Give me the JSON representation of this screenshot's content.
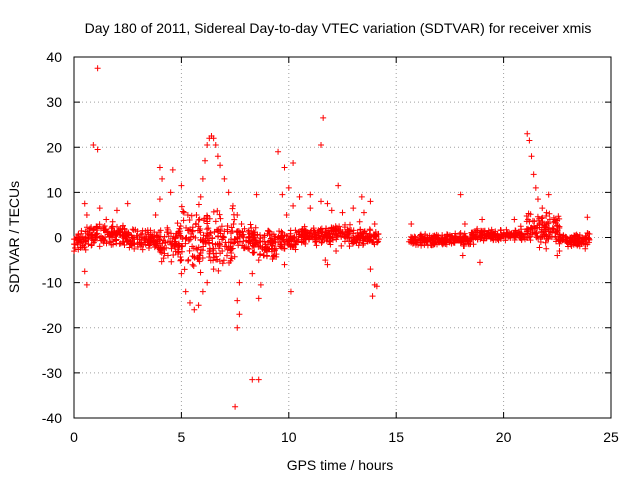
{
  "chart_data": {
    "type": "scatter",
    "title": "Day 180 of 2011, Sidereal Day-to-day VTEC variation (SDTVAR) for receiver xmis",
    "xlabel": "GPS time / hours",
    "ylabel": "SDTVAR / TECUs",
    "xlim": [
      0,
      25
    ],
    "ylim": [
      -40,
      40
    ],
    "xticks": [
      0,
      5,
      10,
      15,
      20,
      25
    ],
    "yticks": [
      -40,
      -30,
      -20,
      -10,
      0,
      10,
      20,
      30,
      40
    ],
    "xtick_labels": [
      "0",
      "5",
      "10",
      "15",
      "20",
      "25"
    ],
    "ytick_labels": [
      "-40",
      "-30",
      "-20",
      "-10",
      "0",
      "10",
      "20",
      "30",
      "40"
    ],
    "grid": true,
    "marker": "+",
    "color": "#ff0000",
    "series": [
      {
        "name": "SDTVAR",
        "points": [
          [
            1.1,
            37.5
          ],
          [
            0.9,
            20.5
          ],
          [
            1.1,
            19.5
          ],
          [
            0.5,
            7.5
          ],
          [
            0.6,
            5.0
          ],
          [
            0.5,
            -7.5
          ],
          [
            0.6,
            -10.5
          ],
          [
            1.2,
            6.5
          ],
          [
            1.5,
            4.0
          ],
          [
            2.0,
            6.0
          ],
          [
            2.5,
            7.5
          ],
          [
            1.8,
            3.5
          ],
          [
            4.0,
            15.5
          ],
          [
            4.1,
            13.0
          ],
          [
            4.0,
            8.5
          ],
          [
            3.8,
            5.0
          ],
          [
            4.6,
            15.0
          ],
          [
            4.5,
            10.0
          ],
          [
            5.0,
            11.5
          ],
          [
            5.3,
            5.0
          ],
          [
            5.5,
            -2.0
          ],
          [
            5.0,
            -5.0
          ],
          [
            5.0,
            -8.0
          ],
          [
            5.2,
            -12.0
          ],
          [
            5.4,
            -14.5
          ],
          [
            5.6,
            -16.0
          ],
          [
            5.8,
            -15.0
          ],
          [
            6.0,
            -12.0
          ],
          [
            6.2,
            -10.0
          ],
          [
            6.5,
            -7.0
          ],
          [
            6.9,
            -3.0
          ],
          [
            7.3,
            -1.0
          ],
          [
            5.7,
            5.0
          ],
          [
            5.9,
            9.0
          ],
          [
            6.0,
            13.0
          ],
          [
            6.1,
            17.0
          ],
          [
            6.2,
            20.5
          ],
          [
            6.3,
            22.0
          ],
          [
            6.4,
            22.5
          ],
          [
            6.5,
            22.0
          ],
          [
            6.6,
            20.5
          ],
          [
            6.7,
            18.0
          ],
          [
            6.8,
            16.0
          ],
          [
            7.0,
            13.0
          ],
          [
            7.2,
            10.0
          ],
          [
            7.4,
            7.0
          ],
          [
            7.6,
            5.0
          ],
          [
            7.8,
            3.0
          ],
          [
            7.5,
            -37.5
          ],
          [
            8.3,
            -31.5
          ],
          [
            8.6,
            -31.5
          ],
          [
            7.6,
            -20.0
          ],
          [
            7.7,
            -17.0
          ],
          [
            7.6,
            -14.0
          ],
          [
            7.7,
            -10.0
          ],
          [
            8.5,
            9.5
          ],
          [
            8.6,
            -5.0
          ],
          [
            8.7,
            -10.5
          ],
          [
            8.6,
            -13.5
          ],
          [
            8.3,
            -8.0
          ],
          [
            9.5,
            19.0
          ],
          [
            9.8,
            15.5
          ],
          [
            10.2,
            16.5
          ],
          [
            10.0,
            11.0
          ],
          [
            9.7,
            9.5
          ],
          [
            10.5,
            9.0
          ],
          [
            11.0,
            9.5
          ],
          [
            11.5,
            8.0
          ],
          [
            11.8,
            7.5
          ],
          [
            11.0,
            6.5
          ],
          [
            10.2,
            7.0
          ],
          [
            9.9,
            5.0
          ],
          [
            12.0,
            6.0
          ],
          [
            12.5,
            5.5
          ],
          [
            13.0,
            6.5
          ],
          [
            13.4,
            9.0
          ],
          [
            13.5,
            5.5
          ],
          [
            13.3,
            3.5
          ],
          [
            11.6,
            26.5
          ],
          [
            11.5,
            20.5
          ],
          [
            12.3,
            11.5
          ],
          [
            12.0,
            2.0
          ],
          [
            9.8,
            -6.0
          ],
          [
            10.1,
            -12.0
          ],
          [
            11.7,
            -5.0
          ],
          [
            11.8,
            -6.0
          ],
          [
            12.2,
            -3.0
          ],
          [
            13.8,
            8.0
          ],
          [
            13.8,
            -7.0
          ],
          [
            14.0,
            -10.5
          ],
          [
            13.9,
            -13.0
          ],
          [
            14.1,
            -10.8
          ],
          [
            14.0,
            3.0
          ],
          [
            15.7,
            3.0
          ],
          [
            15.8,
            -1.0
          ],
          [
            16.3,
            -0.5
          ],
          [
            17.0,
            -0.5
          ],
          [
            17.5,
            0.5
          ],
          [
            18.0,
            1.0
          ],
          [
            18.0,
            9.5
          ],
          [
            18.2,
            3.0
          ],
          [
            18.1,
            -4.0
          ],
          [
            18.6,
            -1.5
          ],
          [
            18.9,
            -5.5
          ],
          [
            19.0,
            4.0
          ],
          [
            19.5,
            0.5
          ],
          [
            20.0,
            0.5
          ],
          [
            20.5,
            1.0
          ],
          [
            20.5,
            4.0
          ],
          [
            20.8,
            2.5
          ],
          [
            21.1,
            23.0
          ],
          [
            21.2,
            21.5
          ],
          [
            21.3,
            18.0
          ],
          [
            21.4,
            14.0
          ],
          [
            21.5,
            11.0
          ],
          [
            21.6,
            8.5
          ],
          [
            21.8,
            6.5
          ],
          [
            22.0,
            5.5
          ],
          [
            22.4,
            4.0
          ],
          [
            22.1,
            9.5
          ],
          [
            22.5,
            2.5
          ],
          [
            22.4,
            1.0
          ],
          [
            22.6,
            -3.0
          ],
          [
            22.5,
            -4.0
          ],
          [
            23.0,
            -2.0
          ],
          [
            23.5,
            -1.0
          ],
          [
            23.9,
            4.5
          ],
          [
            23.9,
            1.0
          ],
          [
            23.8,
            -2.5
          ],
          [
            23.9,
            -1.5
          ]
        ],
        "bands": [
          [
            0.0,
            0.6,
            -4,
            2
          ],
          [
            0.6,
            2.5,
            -2,
            3
          ],
          [
            2.5,
            4.0,
            -3,
            2
          ],
          [
            4.0,
            5.0,
            -6,
            4
          ],
          [
            5.0,
            6.5,
            -9,
            8
          ],
          [
            6.5,
            7.5,
            -8,
            7
          ],
          [
            7.5,
            8.5,
            -4,
            3
          ],
          [
            8.5,
            9.5,
            -5,
            2
          ],
          [
            9.5,
            10.5,
            -3,
            2
          ],
          [
            10.5,
            13.0,
            -2,
            3
          ],
          [
            13.0,
            14.2,
            -2,
            2
          ],
          [
            15.6,
            18.5,
            -2,
            1
          ],
          [
            18.5,
            21.0,
            -1,
            2
          ],
          [
            21.0,
            22.6,
            -3,
            6
          ],
          [
            22.6,
            24.0,
            -2,
            1
          ]
        ]
      }
    ]
  }
}
